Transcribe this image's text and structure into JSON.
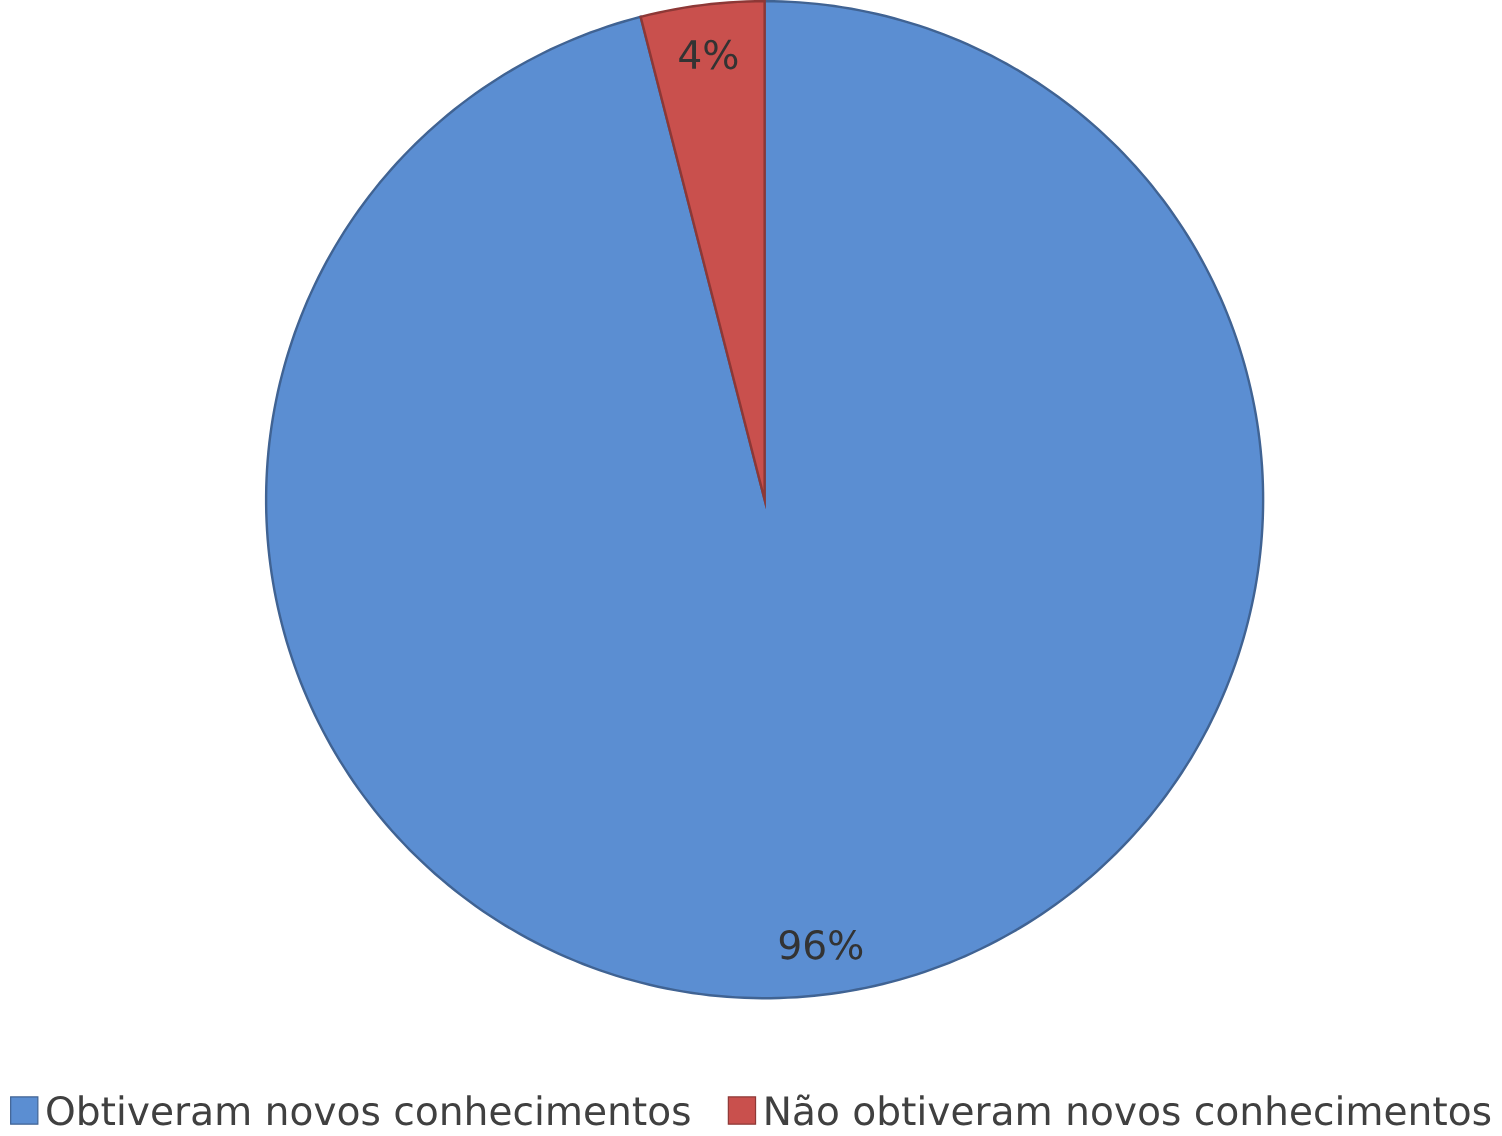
{
  "chart_data": {
    "type": "pie",
    "categories": [
      "Obtiveram novos conhecimentos",
      "Não obtiveram novos conhecimentos"
    ],
    "values": [
      96,
      4
    ],
    "colors": [
      "#5b8ed2",
      "#c9504d"
    ],
    "value_labels": [
      "96%",
      "4%"
    ],
    "legend": "bottom"
  }
}
